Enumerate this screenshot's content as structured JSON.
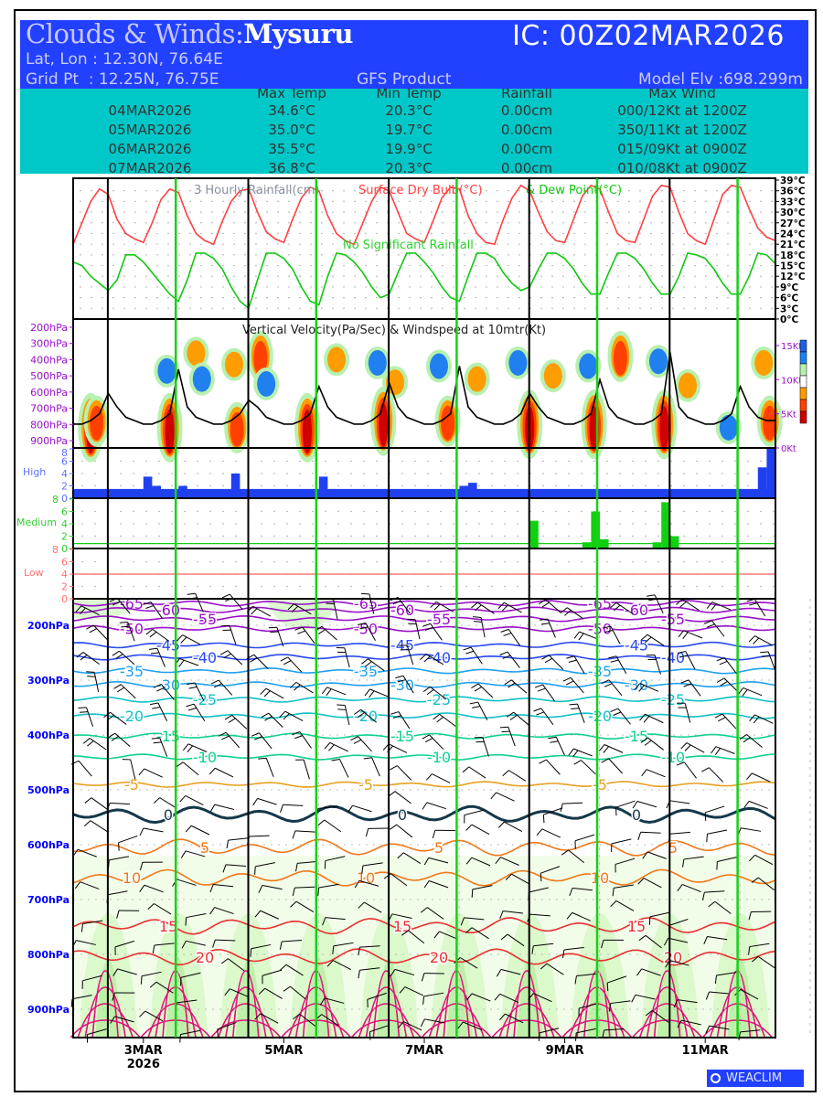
{
  "header": {
    "title_prefix": "Clouds & Winds:",
    "location": "Mysuru",
    "ic": "IC: 00Z02MAR2026",
    "latlon": "Lat, Lon : 12.30N, 76.64E",
    "gridpt": "Grid Pt  : 12.25N, 76.75E",
    "product": "GFS Product",
    "elevation": "Model Elv :698.299m"
  },
  "summary": {
    "columns": [
      "Max Temp",
      "Min Temp",
      "Rainfall",
      "Max Wind"
    ],
    "rows": [
      {
        "date": "04MAR2026",
        "max": "34.6°C",
        "min": "20.3°C",
        "rain": "0.00cm",
        "wind": "000/12Kt at 1200Z"
      },
      {
        "date": "05MAR2026",
        "max": "35.0°C",
        "min": "19.7°C",
        "rain": "0.00cm",
        "wind": "350/11Kt at 1200Z"
      },
      {
        "date": "06MAR2026",
        "max": "35.5°C",
        "min": "19.9°C",
        "rain": "0.00cm",
        "wind": "015/09Kt at 0900Z"
      },
      {
        "date": "07MAR2026",
        "max": "36.8°C",
        "min": "20.3°C",
        "rain": "0.00cm",
        "wind": "010/08Kt at 0900Z"
      }
    ]
  },
  "colors": {
    "header_bg": "#2240ff",
    "table_bg": "#00c8c8",
    "drybulb": "#ff4040",
    "dewpoint": "#10c810",
    "high": "#2040f0",
    "medium": "#10d010",
    "low": "#ff6060"
  },
  "panels": {
    "temp_title_a": "3 Hourly Rainfall(cm)",
    "temp_title_b": "Surface Dry Bulb(°C)",
    "temp_title_c": "& Dew Point(°C)",
    "no_rain": "No Significant Rainfall",
    "vv_title": "Vertical Velocity(Pa/Sec) & Windspeed at 10mtr(Kt)",
    "high": "High",
    "medium": "Medium",
    "low": "Low",
    "logo": "WEACLIM"
  },
  "chart_data": [
    {
      "type": "line",
      "title": "Surface Dry Bulb & Dew Point",
      "x_unit": "hours since 00Z02MAR2026",
      "x_step_hours": 3,
      "ylim": [
        0,
        39
      ],
      "yticks": [
        "0°C",
        "3°C",
        "6°C",
        "9°C",
        "12°C",
        "15°C",
        "18°C",
        "21°C",
        "24°C",
        "27°C",
        "30°C",
        "33°C",
        "36°C",
        "39°C"
      ],
      "series": [
        {
          "name": "Dry Bulb",
          "values": [
            21,
            27,
            33,
            36.5,
            35,
            28,
            24,
            22.5,
            21.5,
            27,
            33.5,
            36.5,
            35.5,
            29,
            24,
            22,
            21,
            27.5,
            33,
            36,
            36.5,
            30,
            24.5,
            22.5,
            21.5,
            28,
            34,
            37,
            36,
            29,
            24,
            22,
            21,
            27,
            33,
            37,
            36,
            30,
            24,
            22.5,
            21.5,
            27.5,
            34,
            37,
            36.5,
            29,
            24,
            21.5,
            21,
            28,
            34,
            37.5,
            36,
            30,
            24.5,
            22,
            21.5,
            28,
            34.5,
            37.5,
            36.5,
            30,
            24,
            22,
            21.5,
            28,
            34.5,
            37.5,
            37,
            30,
            24,
            22,
            21,
            28,
            35,
            37.5,
            37,
            31,
            25.5,
            23,
            22
          ]
        },
        {
          "name": "Dew Point",
          "values": [
            16,
            15,
            12,
            10,
            8,
            11,
            18,
            18,
            16,
            13,
            10,
            7,
            5,
            11,
            18.5,
            18.5,
            17,
            14,
            9,
            5,
            3,
            11,
            18.5,
            18.5,
            17,
            14,
            9,
            5,
            4,
            12,
            18.5,
            18,
            16,
            13,
            9,
            6,
            7,
            13,
            18.5,
            18.5,
            16,
            13,
            9,
            6,
            5,
            12,
            18.5,
            18.5,
            17,
            13,
            10,
            8,
            9,
            14,
            18.5,
            18.5,
            17,
            14,
            10,
            7,
            7,
            13,
            18.5,
            18.5,
            17,
            14,
            10,
            7,
            7,
            12,
            18.5,
            18,
            17,
            14,
            10,
            7,
            7,
            12,
            18.5,
            18,
            15.5
          ]
        }
      ]
    },
    {
      "type": "line",
      "title": "Windspeed at 10mtr (Kt)",
      "x_step_hours": 3,
      "ylim": [
        0,
        15
      ],
      "yticks": [
        "0Kt",
        "5Kt",
        "10Kt",
        "15Kt"
      ],
      "pressure_ticks": [
        "200hPa",
        "300hPa",
        "400hPa",
        "500hPa",
        "600hPa",
        "700hPa",
        "800hPa",
        "900hPa"
      ],
      "daily_peaks": [
        8,
        11.5,
        7,
        9,
        9.5,
        12,
        8,
        10,
        14,
        9
      ],
      "daily_shape": [
        3.5,
        3.5,
        4,
        5,
        1,
        6,
        4.5,
        4
      ],
      "vv_cells": [
        [
          6,
          820,
          -3
        ],
        [
          8,
          780,
          -2
        ],
        [
          32,
          470,
          1
        ],
        [
          33,
          820,
          -3
        ],
        [
          42,
          360,
          -1
        ],
        [
          44,
          520,
          1
        ],
        [
          55,
          430,
          -1
        ],
        [
          56,
          820,
          -2
        ],
        [
          64,
          380,
          -2
        ],
        [
          66,
          550,
          1
        ],
        [
          80,
          820,
          -3
        ],
        [
          90,
          400,
          -1
        ],
        [
          104,
          420,
          1
        ],
        [
          106,
          780,
          -3
        ],
        [
          110,
          540,
          -1
        ],
        [
          125,
          440,
          1
        ],
        [
          128,
          780,
          -2
        ],
        [
          138,
          520,
          -1
        ],
        [
          152,
          420,
          1
        ],
        [
          156,
          800,
          -3
        ],
        [
          164,
          500,
          -1
        ],
        [
          176,
          440,
          1
        ],
        [
          178,
          800,
          -3
        ],
        [
          187,
          380,
          -2
        ],
        [
          200,
          410,
          1
        ],
        [
          202,
          800,
          -3
        ],
        [
          210,
          560,
          -1
        ],
        [
          224,
          820,
          1
        ],
        [
          236,
          420,
          -1
        ],
        [
          238,
          780,
          -2
        ]
      ]
    },
    {
      "type": "bar",
      "title": "Cloud cover (High / Medium / Low)",
      "yticks": [
        "0",
        "2",
        "4",
        "6",
        "8"
      ],
      "high_baseline": 1.5,
      "high": [
        [
          24,
          3.5
        ],
        [
          27,
          2
        ],
        [
          36,
          2
        ],
        [
          54,
          4
        ],
        [
          84,
          3.5
        ],
        [
          132,
          2
        ],
        [
          135,
          2.5
        ],
        [
          234,
          5
        ],
        [
          237,
          8
        ]
      ],
      "medium_baseline": 0.8,
      "medium": [
        [
          156,
          4.5
        ],
        [
          174,
          1
        ],
        [
          177,
          6
        ],
        [
          180,
          1.5
        ],
        [
          198,
          1
        ],
        [
          201,
          7.5
        ],
        [
          204,
          2
        ]
      ],
      "low_baseline": 4
    },
    {
      "type": "line",
      "title": "Temperature contours (°C) & winds",
      "pressure_ticks": [
        "200hPa",
        "300hPa",
        "400hPa",
        "500hPa",
        "600hPa",
        "700hPa",
        "800hPa",
        "900hPa"
      ],
      "contours": [
        {
          "level": "-65",
          "p": 160,
          "color": "#9a10c8"
        },
        {
          "level": "-60",
          "p": 172,
          "color": "#9a10c8"
        },
        {
          "level": "-55",
          "p": 188,
          "color": "#9a10c8"
        },
        {
          "level": "-50",
          "p": 206,
          "color": "#9a10c8"
        },
        {
          "level": "-45",
          "p": 236,
          "color": "#2848f0"
        },
        {
          "level": "-40",
          "p": 258,
          "color": "#2848f0"
        },
        {
          "level": "-35",
          "p": 283,
          "color": "#20a0f0"
        },
        {
          "level": "-30",
          "p": 308,
          "color": "#20a0f0"
        },
        {
          "level": "-25",
          "p": 335,
          "color": "#10c0c8"
        },
        {
          "level": "-20",
          "p": 365,
          "color": "#10c0c8"
        },
        {
          "level": "-15",
          "p": 402,
          "color": "#10d090"
        },
        {
          "level": "-10",
          "p": 440,
          "color": "#10d090"
        },
        {
          "level": "-5",
          "p": 490,
          "color": "#e8a020"
        },
        {
          "level": "0",
          "p": 545,
          "color": "#14384a"
        },
        {
          "level": "5",
          "p": 605,
          "color": "#f07818"
        },
        {
          "level": "10",
          "p": 660,
          "color": "#f07818"
        },
        {
          "level": "15",
          "p": 748,
          "color": "#e83030"
        },
        {
          "level": "20",
          "p": 805,
          "color": "#e83030"
        }
      ],
      "xticks": [
        "3MAR\n2026",
        "5MAR",
        "7MAR",
        "9MAR",
        "11MAR"
      ],
      "xtick_hours": [
        24,
        72,
        120,
        168,
        216
      ]
    }
  ]
}
